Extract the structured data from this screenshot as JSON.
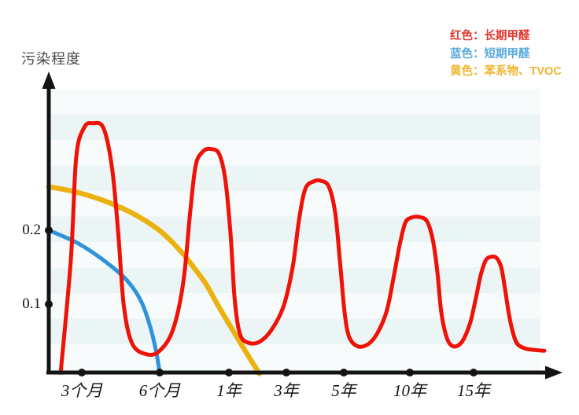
{
  "y_axis": {
    "title": "污染程度",
    "tick_labels": [
      "0.2",
      "0.1"
    ],
    "tick_values": [
      0.2,
      0.1
    ]
  },
  "x_axis": {
    "tick_labels": [
      "3个月",
      "6个月",
      "1年",
      "3年",
      "5年",
      "10年",
      "15年"
    ]
  },
  "legend": {
    "items": [
      {
        "label": "红色：长期甲醛",
        "color": "#e23730"
      },
      {
        "label": "蓝色：短期甲醛",
        "color": "#58aadf"
      },
      {
        "label": "黄色：苯系物、TVOC",
        "color": "#f2b42c"
      }
    ]
  },
  "chart_data": {
    "type": "line",
    "title": "",
    "ylabel": "污染程度",
    "xlabel": "",
    "x_tick_labels": [
      "3个月",
      "6个月",
      "1年",
      "3年",
      "5年",
      "10年",
      "15年"
    ],
    "y_ticks": [
      0.1,
      0.2
    ],
    "ylim": [
      0,
      0.4
    ],
    "x_axis_note": "non-linear time axis with equally spaced ticks; point x-units: 0=origin, 1=3个月, 2=6个月, 3=1年, 4=3年, 5=5年, 6=10年, 7=15年, 8=right edge",
    "series": [
      {
        "name": "长期甲醛",
        "legend_label": "红色：长期甲醛",
        "color": "#ee1208",
        "points": [
          [
            0.36,
            0.007
          ],
          [
            0.67,
            0.161
          ],
          [
            0.83,
            0.299
          ],
          [
            1.03,
            0.339
          ],
          [
            1.14,
            0.345
          ],
          [
            1.28,
            0.338
          ],
          [
            1.39,
            0.283
          ],
          [
            1.47,
            0.193
          ],
          [
            1.54,
            0.097
          ],
          [
            1.65,
            0.046
          ],
          [
            1.84,
            0.032
          ],
          [
            2.0,
            0.037
          ],
          [
            2.19,
            0.065
          ],
          [
            2.34,
            0.129
          ],
          [
            2.44,
            0.224
          ],
          [
            2.52,
            0.288
          ],
          [
            2.63,
            0.307
          ],
          [
            2.74,
            0.31
          ],
          [
            2.86,
            0.303
          ],
          [
            2.95,
            0.267
          ],
          [
            3.03,
            0.193
          ],
          [
            3.1,
            0.107
          ],
          [
            3.19,
            0.06
          ],
          [
            3.33,
            0.048
          ],
          [
            3.53,
            0.049
          ],
          [
            3.74,
            0.065
          ],
          [
            3.95,
            0.097
          ],
          [
            4.11,
            0.15
          ],
          [
            4.22,
            0.214
          ],
          [
            4.33,
            0.256
          ],
          [
            4.47,
            0.266
          ],
          [
            4.6,
            0.267
          ],
          [
            4.74,
            0.259
          ],
          [
            4.85,
            0.224
          ],
          [
            4.93,
            0.161
          ],
          [
            5.01,
            0.091
          ],
          [
            5.08,
            0.056
          ],
          [
            5.21,
            0.043
          ],
          [
            5.37,
            0.046
          ],
          [
            5.51,
            0.061
          ],
          [
            5.65,
            0.091
          ],
          [
            5.76,
            0.139
          ],
          [
            5.85,
            0.182
          ],
          [
            5.93,
            0.21
          ],
          [
            6.02,
            0.217
          ],
          [
            6.15,
            0.218
          ],
          [
            6.27,
            0.212
          ],
          [
            6.36,
            0.187
          ],
          [
            6.43,
            0.145
          ],
          [
            6.49,
            0.091
          ],
          [
            6.56,
            0.06
          ],
          [
            6.63,
            0.046
          ],
          [
            6.73,
            0.043
          ],
          [
            6.84,
            0.052
          ],
          [
            6.95,
            0.076
          ],
          [
            7.03,
            0.107
          ],
          [
            7.1,
            0.139
          ],
          [
            7.17,
            0.159
          ],
          [
            7.24,
            0.164
          ],
          [
            7.32,
            0.163
          ],
          [
            7.39,
            0.15
          ],
          [
            7.44,
            0.123
          ],
          [
            7.5,
            0.086
          ],
          [
            7.56,
            0.06
          ],
          [
            7.62,
            0.046
          ],
          [
            7.73,
            0.04
          ],
          [
            7.87,
            0.038
          ],
          [
            8.0,
            0.037
          ]
        ]
      },
      {
        "name": "短期甲醛",
        "legend_label": "蓝色：短期甲醛",
        "color": "#2e93dc",
        "points": [
          [
            0,
            0.2
          ],
          [
            0.9,
            0.182
          ],
          [
            1.31,
            0.157
          ],
          [
            1.59,
            0.131
          ],
          [
            1.77,
            0.102
          ],
          [
            1.89,
            0.065
          ],
          [
            1.96,
            0.033
          ],
          [
            2.0,
            0.007
          ]
        ]
      },
      {
        "name": "苯系物、TVOC",
        "legend_label": "黄色：苯系物、TVOC",
        "color": "#ebb20f",
        "points": [
          [
            0,
            0.259
          ],
          [
            0.9,
            0.251
          ],
          [
            1.36,
            0.237
          ],
          [
            1.72,
            0.219
          ],
          [
            2.02,
            0.198
          ],
          [
            2.31,
            0.171
          ],
          [
            2.53,
            0.145
          ],
          [
            2.67,
            0.127
          ],
          [
            2.85,
            0.097
          ],
          [
            3.05,
            0.067
          ],
          [
            3.29,
            0.036
          ],
          [
            3.53,
            0.006
          ]
        ]
      }
    ]
  }
}
